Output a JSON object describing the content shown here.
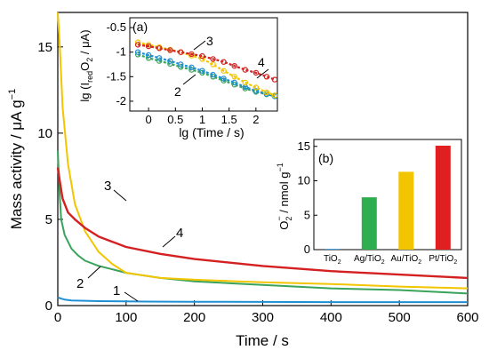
{
  "chart_data": [
    {
      "type": "line",
      "xlabel": "Time / s",
      "ylabel": "Mass activity / μA g",
      "ylabel_sup": "−1",
      "xlim": [
        0,
        600
      ],
      "ylim": [
        0,
        17
      ],
      "x_ticks": [
        "0",
        "100",
        "200",
        "300",
        "400",
        "500",
        "600"
      ],
      "y_ticks": [
        "0",
        "5",
        "10",
        "15"
      ],
      "series": [
        {
          "name": "1",
          "color": "#1f8fd4",
          "x": [
            0,
            2,
            5,
            10,
            20,
            40,
            60,
            80,
            100,
            130,
            200,
            300,
            400,
            500,
            600
          ],
          "y": [
            0.5,
            0.45,
            0.4,
            0.35,
            0.3,
            0.28,
            0.26,
            0.25,
            0.24,
            0.23,
            0.22,
            0.21,
            0.2,
            0.2,
            0.2
          ]
        },
        {
          "name": "2",
          "color": "#3aa35b",
          "x": [
            0,
            2,
            5,
            10,
            20,
            30,
            40,
            60,
            80,
            100,
            150,
            200,
            300,
            400,
            500,
            600
          ],
          "y": [
            9.0,
            7.0,
            5.0,
            4.1,
            3.3,
            2.9,
            2.6,
            2.3,
            2.1,
            1.9,
            1.6,
            1.4,
            1.2,
            1.0,
            0.9,
            0.7
          ]
        },
        {
          "name": "3",
          "color": "#f2c500",
          "x": [
            0,
            3,
            7,
            15,
            25,
            40,
            60,
            80,
            100,
            150,
            200,
            300,
            400,
            500,
            600
          ],
          "y": [
            17.0,
            15.0,
            11.5,
            8.2,
            5.9,
            4.3,
            3.1,
            2.4,
            1.9,
            1.6,
            1.5,
            1.35,
            1.25,
            1.1,
            1.0
          ]
        },
        {
          "name": "4",
          "color": "#d42020",
          "x": [
            0,
            3,
            7,
            15,
            25,
            40,
            60,
            80,
            100,
            150,
            200,
            300,
            400,
            500,
            600
          ],
          "y": [
            8.0,
            7.2,
            6.2,
            5.4,
            5.0,
            4.5,
            4.0,
            3.7,
            3.4,
            3.0,
            2.7,
            2.3,
            2.0,
            1.8,
            1.6
          ]
        }
      ]
    },
    {
      "type": "scatter",
      "panel_label": "(a)",
      "xlabel": "lg (Time / s)",
      "ylabel": "lg (I",
      "ylabel_sub": "red",
      "ylabel_tail": "O",
      "ylabel_sub2": "2",
      "ylabel_end": " / μA)",
      "xlim": [
        -0.35,
        2.4
      ],
      "ylim": [
        -2.2,
        -0.3
      ],
      "x_ticks": [
        "0",
        "0.5",
        "1",
        "1.5",
        "2"
      ],
      "y_ticks": [
        "-0.5",
        "-1",
        "-1.5",
        "-2"
      ],
      "series": [
        {
          "name": "2",
          "color": "#3aa35b",
          "x": [
            -0.2,
            0.0,
            0.2,
            0.4,
            0.6,
            0.8,
            1.0,
            1.2,
            1.4,
            1.6,
            1.8,
            2.0,
            2.2,
            2.35
          ],
          "y": [
            -1.05,
            -1.12,
            -1.18,
            -1.24,
            -1.3,
            -1.36,
            -1.42,
            -1.5,
            -1.58,
            -1.66,
            -1.74,
            -1.81,
            -1.86,
            -1.9
          ]
        },
        {
          "name": "1",
          "color": "#1f8fd4",
          "x": [
            -0.2,
            0.0,
            0.2,
            0.4,
            0.6,
            0.8,
            1.0,
            1.2,
            1.4,
            1.6,
            1.8,
            2.0,
            2.2,
            2.35
          ],
          "y": [
            -1.0,
            -1.06,
            -1.12,
            -1.18,
            -1.25,
            -1.31,
            -1.38,
            -1.46,
            -1.54,
            -1.62,
            -1.71,
            -1.79,
            -1.85,
            -1.9
          ]
        },
        {
          "name": "3",
          "color": "#f2c500",
          "x": [
            -0.2,
            0.0,
            0.2,
            0.4,
            0.6,
            0.8,
            1.0,
            1.2,
            1.4,
            1.6,
            1.8,
            2.0,
            2.2,
            2.35
          ],
          "y": [
            -0.8,
            -0.85,
            -0.9,
            -0.95,
            -1.0,
            -1.07,
            -1.14,
            -1.25,
            -1.38,
            -1.5,
            -1.62,
            -1.72,
            -1.82,
            -1.88
          ]
        },
        {
          "name": "4",
          "color": "#d42020",
          "x": [
            -0.2,
            0.0,
            0.2,
            0.4,
            0.6,
            0.8,
            1.0,
            1.2,
            1.4,
            1.6,
            1.8,
            2.0,
            2.2,
            2.35
          ],
          "y": [
            -0.85,
            -0.88,
            -0.92,
            -0.96,
            -1.0,
            -1.04,
            -1.08,
            -1.14,
            -1.2,
            -1.28,
            -1.36,
            -1.42,
            -1.5,
            -1.56
          ]
        }
      ],
      "annotations": [
        "3",
        "4",
        "2"
      ]
    },
    {
      "type": "bar",
      "panel_label": "(b)",
      "ylabel": "O",
      "ylabel_sub": "2",
      "ylabel_sup": "−",
      "ylabel_end": " / nmol g",
      "ylabel_sup2": "−1",
      "ylim": [
        0,
        16
      ],
      "y_ticks": [
        "0",
        "5",
        "10",
        "15"
      ],
      "categories": [
        "TiO2",
        "Ag/TiO2",
        "Au/TiO2",
        "Pt/TiO2"
      ],
      "category_base": [
        "TiO",
        "Ag/TiO",
        "Au/TiO",
        "Pt/TiO"
      ],
      "category_sub": "2",
      "values": [
        0.1,
        7.6,
        11.3,
        15.1
      ],
      "colors": [
        "#1f8fd4",
        "#2fae4f",
        "#f2c500",
        "#e02020"
      ]
    }
  ]
}
